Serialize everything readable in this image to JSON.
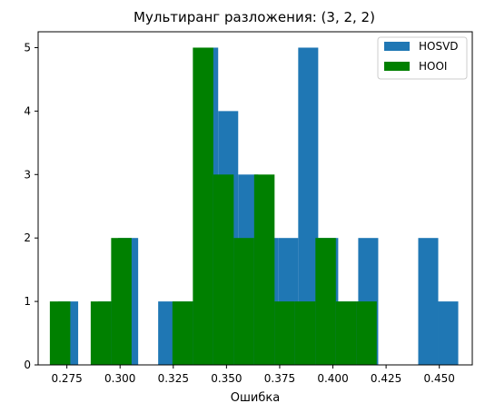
{
  "chart_data": {
    "type": "histogram",
    "title": "Мультиранг разложения: (3, 2, 2)",
    "xlabel": "Ошибка",
    "ylabel": "",
    "xlim": [
      0.2615,
      0.4655
    ],
    "ylim": [
      0,
      5.25
    ],
    "x_ticks": [
      0.275,
      0.3,
      0.325,
      0.35,
      0.375,
      0.4,
      0.425,
      0.45
    ],
    "x_tick_labels": [
      "0.275",
      "0.300",
      "0.325",
      "0.350",
      "0.375",
      "0.400",
      "0.425",
      "0.450"
    ],
    "y_ticks": [
      0,
      1,
      2,
      3,
      4,
      5
    ],
    "y_tick_labels": [
      "0",
      "1",
      "2",
      "3",
      "4",
      "5"
    ],
    "grid": false,
    "legend_position": "upper right",
    "series": [
      {
        "name": "HOSVD",
        "color": "#1f77b4",
        "bins": [
          {
            "x0": 0.2709,
            "x1": 0.2803,
            "count": 1
          },
          {
            "x0": 0.2803,
            "x1": 0.2897,
            "count": 0
          },
          {
            "x0": 0.2897,
            "x1": 0.2991,
            "count": 1
          },
          {
            "x0": 0.2991,
            "x1": 0.3085,
            "count": 2
          },
          {
            "x0": 0.3085,
            "x1": 0.3179,
            "count": 0
          },
          {
            "x0": 0.3179,
            "x1": 0.3273,
            "count": 1
          },
          {
            "x0": 0.3273,
            "x1": 0.3367,
            "count": 1
          },
          {
            "x0": 0.3367,
            "x1": 0.3461,
            "count": 5
          },
          {
            "x0": 0.3461,
            "x1": 0.3555,
            "count": 4
          },
          {
            "x0": 0.3555,
            "x1": 0.3649,
            "count": 3
          },
          {
            "x0": 0.3649,
            "x1": 0.3743,
            "count": 2
          },
          {
            "x0": 0.3743,
            "x1": 0.3837,
            "count": 2
          },
          {
            "x0": 0.3837,
            "x1": 0.3931,
            "count": 5
          },
          {
            "x0": 0.3931,
            "x1": 0.4025,
            "count": 2
          },
          {
            "x0": 0.4025,
            "x1": 0.4119,
            "count": 1
          },
          {
            "x0": 0.4119,
            "x1": 0.4213,
            "count": 2
          },
          {
            "x0": 0.4213,
            "x1": 0.4307,
            "count": 0
          },
          {
            "x0": 0.4307,
            "x1": 0.4401,
            "count": 0
          },
          {
            "x0": 0.4401,
            "x1": 0.4495,
            "count": 2
          },
          {
            "x0": 0.4495,
            "x1": 0.4589,
            "count": 1
          }
        ]
      },
      {
        "name": "HOOI",
        "color": "#008000",
        "bins": [
          {
            "x0": 0.267,
            "x1": 0.2766,
            "count": 1
          },
          {
            "x0": 0.2766,
            "x1": 0.2862,
            "count": 0
          },
          {
            "x0": 0.2862,
            "x1": 0.2958,
            "count": 1
          },
          {
            "x0": 0.2958,
            "x1": 0.3054,
            "count": 2
          },
          {
            "x0": 0.3054,
            "x1": 0.315,
            "count": 0
          },
          {
            "x0": 0.315,
            "x1": 0.3246,
            "count": 0
          },
          {
            "x0": 0.3246,
            "x1": 0.3342,
            "count": 1
          },
          {
            "x0": 0.3342,
            "x1": 0.3438,
            "count": 5
          },
          {
            "x0": 0.3438,
            "x1": 0.3534,
            "count": 3
          },
          {
            "x0": 0.3534,
            "x1": 0.363,
            "count": 2
          },
          {
            "x0": 0.363,
            "x1": 0.3726,
            "count": 3
          },
          {
            "x0": 0.3726,
            "x1": 0.3822,
            "count": 1
          },
          {
            "x0": 0.3822,
            "x1": 0.3918,
            "count": 1
          },
          {
            "x0": 0.3918,
            "x1": 0.4014,
            "count": 2
          },
          {
            "x0": 0.4014,
            "x1": 0.411,
            "count": 1
          },
          {
            "x0": 0.411,
            "x1": 0.4206,
            "count": 1
          }
        ]
      }
    ]
  }
}
